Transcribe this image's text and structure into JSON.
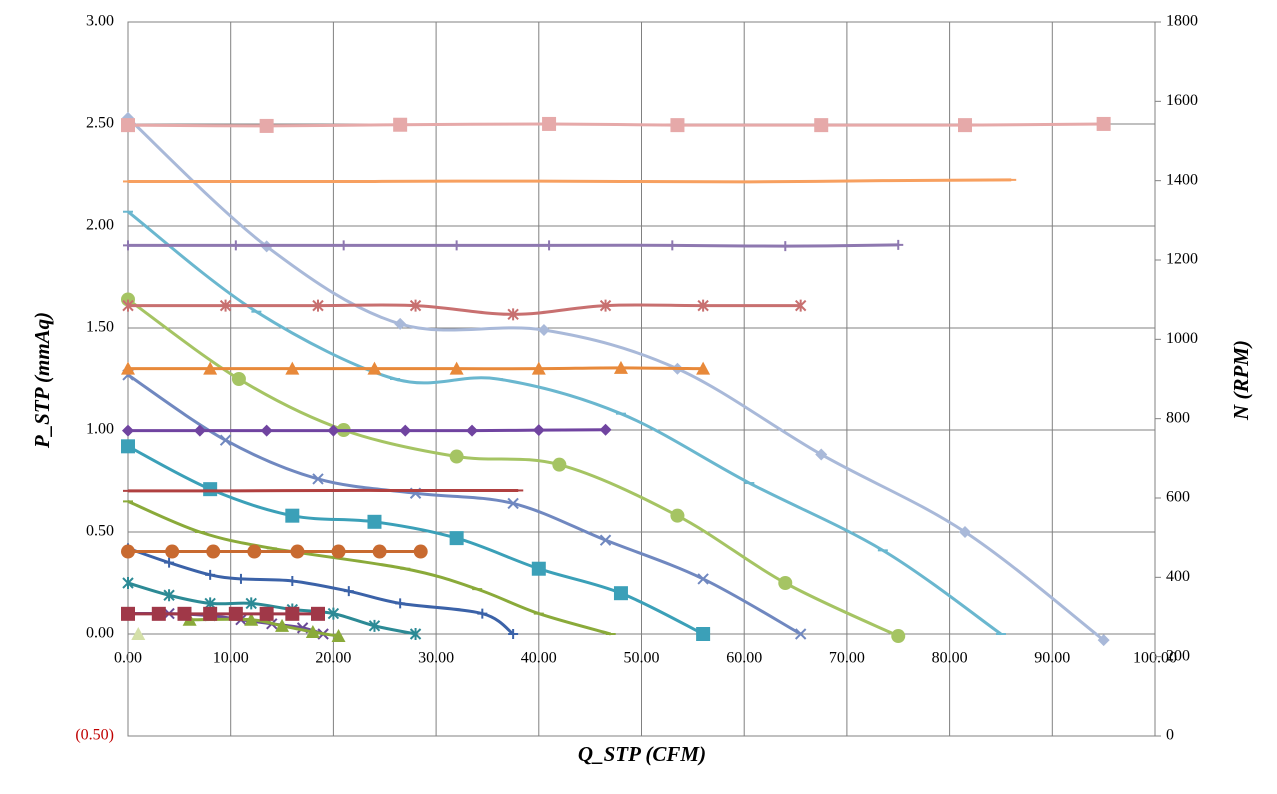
{
  "chart_data": {
    "type": "line",
    "x_label": "Q_STP (CFM)",
    "y_label": "P_STP (mmAq)",
    "y2_label": "N (RPM)",
    "xlim": [
      0,
      100
    ],
    "ylim": [
      -0.5,
      3
    ],
    "y2lim": [
      0,
      1800
    ],
    "grid": true,
    "xticks": [
      {
        "value": 0,
        "label": "0.00"
      },
      {
        "value": 10,
        "label": "10.00"
      },
      {
        "value": 20,
        "label": "20.00"
      },
      {
        "value": 30,
        "label": "30.00"
      },
      {
        "value": 40,
        "label": "40.00"
      },
      {
        "value": 50,
        "label": "50.00"
      },
      {
        "value": 60,
        "label": "60.00"
      },
      {
        "value": 70,
        "label": "70.00"
      },
      {
        "value": 80,
        "label": "80.00"
      },
      {
        "value": 90,
        "label": "90.00"
      },
      {
        "value": 100,
        "label": "100.00"
      }
    ],
    "yticks": [
      {
        "value": 3,
        "label": "3.00"
      },
      {
        "value": 2.5,
        "label": "2.50"
      },
      {
        "value": 2,
        "label": "2.00"
      },
      {
        "value": 1.5,
        "label": "1.50"
      },
      {
        "value": 1,
        "label": "1.00"
      },
      {
        "value": 0.5,
        "label": "0.50"
      },
      {
        "value": 0,
        "label": "0.00"
      },
      {
        "value": -0.5,
        "label": "(0.50)"
      }
    ],
    "y2ticks": [
      0,
      200,
      400,
      600,
      800,
      1000,
      1200,
      1400,
      1600,
      1800
    ],
    "series": [
      {
        "color": "#a9b9d9",
        "marker": "diamond",
        "x": [
          0,
          13.5,
          26.5,
          40.5,
          53.5,
          67.5,
          81.5,
          95
        ],
        "values": [
          2.53,
          1.9,
          1.52,
          1.49,
          1.3,
          0.88,
          0.5,
          -0.03
        ]
      },
      {
        "color": "#6ab7cf",
        "marker": "dash",
        "x": [
          0,
          12.5,
          26,
          36,
          48,
          60.5,
          73.5,
          85
        ],
        "values": [
          2.07,
          1.58,
          1.25,
          1.25,
          1.08,
          0.74,
          0.41,
          0
        ]
      },
      {
        "color": "#a5c463",
        "marker": "circle",
        "x": [
          0,
          10.8,
          21,
          32,
          42,
          53.5,
          64,
          75
        ],
        "values": [
          1.64,
          1.25,
          1,
          0.87,
          0.83,
          0.58,
          0.25,
          -0.01
        ]
      },
      {
        "color": "#7088c0",
        "marker": "x",
        "x": [
          0,
          9.5,
          18.5,
          28,
          37.5,
          46.5,
          56,
          65.5
        ],
        "values": [
          1.27,
          0.95,
          0.76,
          0.69,
          0.64,
          0.46,
          0.27,
          0
        ]
      },
      {
        "color": "#3ba0b8",
        "marker": "square",
        "x": [
          0,
          8,
          16,
          24,
          32,
          40,
          48,
          56
        ],
        "values": [
          0.92,
          0.71,
          0.58,
          0.55,
          0.47,
          0.32,
          0.2,
          0
        ]
      },
      {
        "color": "#8aaa3a",
        "marker": "dash",
        "x": [
          0,
          7,
          14,
          27,
          34,
          40,
          47
        ],
        "values": [
          0.65,
          0.5,
          0.42,
          0.32,
          0.22,
          0.1,
          0
        ]
      },
      {
        "color": "#3b62a8",
        "marker": "plus",
        "x": [
          0,
          4,
          8,
          11,
          16,
          21.5,
          26.5,
          34.5,
          37.5
        ],
        "values": [
          0.42,
          0.35,
          0.29,
          0.27,
          0.26,
          0.21,
          0.15,
          0.1,
          0
        ]
      },
      {
        "color": "#2c8a95",
        "marker": "asterisk",
        "x": [
          0,
          4,
          8,
          12,
          16,
          20,
          24,
          28
        ],
        "values": [
          0.25,
          0.19,
          0.15,
          0.15,
          0.12,
          0.1,
          0.04,
          0
        ]
      },
      {
        "color": "#6a4a96",
        "marker": "x",
        "x": [
          0,
          4,
          8,
          11,
          14,
          17,
          19
        ],
        "values": [
          0.1,
          0.1,
          0.09,
          0.07,
          0.05,
          0.03,
          0
        ]
      },
      {
        "color": "#8aaa3a",
        "marker": "triangle",
        "x": [
          6,
          12,
          15,
          18,
          20.5
        ],
        "values": [
          0.07,
          0.07,
          0.04,
          0.01,
          -0.01
        ]
      },
      {
        "color": "#d4e0a8",
        "marker": "triangle",
        "x": [
          1
        ],
        "values": [
          0
        ]
      },
      {
        "color": "#e6a9a9",
        "marker": "square",
        "axis": "y2",
        "x": [
          0,
          13.5,
          26.5,
          41,
          53.5,
          67.5,
          81.5,
          95
        ],
        "values": [
          1540,
          1538,
          1541,
          1543,
          1540,
          1540,
          1540,
          1543
        ]
      },
      {
        "color": "#f7a060",
        "marker": "dash",
        "axis": "y2",
        "x": [
          0,
          12.5,
          24,
          36,
          48,
          60.5,
          73.5,
          86
        ],
        "values": [
          1398,
          1398,
          1398,
          1399,
          1398,
          1397,
          1400,
          1402
        ]
      },
      {
        "color": "#8e78b0",
        "marker": "plus",
        "axis": "y2",
        "x": [
          0,
          10.5,
          21,
          32,
          41,
          53,
          64,
          75
        ],
        "values": [
          1237,
          1237,
          1237,
          1237,
          1237,
          1237,
          1235,
          1238
        ]
      },
      {
        "color": "#c87070",
        "marker": "asterisk",
        "axis": "y2",
        "x": [
          0,
          9.5,
          18.5,
          28,
          37.5,
          46.5,
          56,
          65.5
        ],
        "values": [
          1085,
          1085,
          1085,
          1085,
          1063,
          1085,
          1085,
          1085
        ]
      },
      {
        "color": "#e8893a",
        "marker": "triangle",
        "axis": "y2",
        "x": [
          0,
          8,
          16,
          24,
          32,
          40,
          48,
          56
        ],
        "values": [
          926,
          926,
          926,
          926,
          926,
          926,
          928,
          926
        ]
      },
      {
        "color": "#7044a0",
        "marker": "diamond",
        "axis": "y2",
        "x": [
          0,
          7,
          13.5,
          20,
          27,
          33.5,
          40,
          46.5
        ],
        "values": [
          770,
          770,
          770,
          770,
          770,
          770,
          771,
          772
        ]
      },
      {
        "color": "#b04040",
        "marker": "dash",
        "axis": "y2",
        "x": [
          0,
          10,
          20,
          30,
          38
        ],
        "values": [
          618,
          618,
          619,
          619,
          619
        ]
      },
      {
        "color": "#c86a30",
        "marker": "circle",
        "axis": "y2",
        "x": [
          0,
          4.3,
          8.3,
          12.3,
          16.5,
          20.5,
          24.5,
          28.5
        ],
        "values": [
          465,
          465,
          465,
          465,
          465,
          465,
          465,
          465
        ]
      },
      {
        "color": "#a03848",
        "marker": "square",
        "axis": "y2",
        "x": [
          0,
          3,
          5.5,
          8,
          10.5,
          13.5,
          16,
          18.5
        ],
        "values": [
          308,
          308,
          308,
          308,
          308,
          308,
          308,
          308
        ]
      }
    ]
  }
}
